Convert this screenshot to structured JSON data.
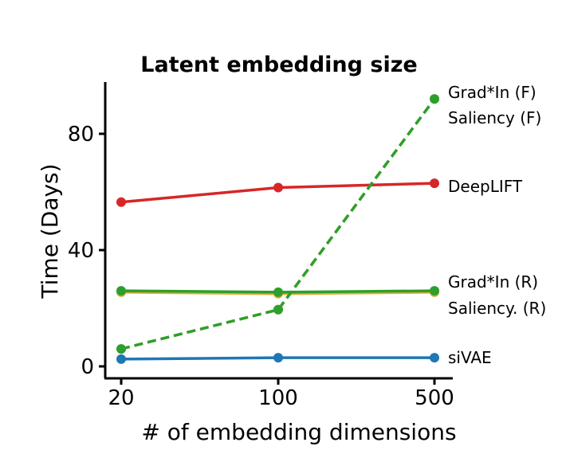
{
  "chart_data": {
    "type": "line",
    "title": "Latent embedding size",
    "xlabel": "# of embedding dimensions",
    "ylabel": "Time (Days)",
    "categories": [
      "20",
      "100",
      "500"
    ],
    "yticks": [
      "0",
      "40",
      "80"
    ],
    "ylim": [
      0,
      100
    ],
    "grid": false,
    "legend": "labels at line ends (right)",
    "series": [
      {
        "name": "Grad*In (F)",
        "color": "#2ca02c",
        "dashed": true,
        "values": [
          6,
          19.5,
          92
        ]
      },
      {
        "name": "Saliency (F)",
        "color": "#e8a93a",
        "dashed": true,
        "values": [
          6,
          19.5,
          92
        ]
      },
      {
        "name": "DeepLIFT",
        "color": "#d62728",
        "dashed": false,
        "values": [
          56.5,
          61.5,
          63
        ]
      },
      {
        "name": "Grad*In (R)",
        "color": "#2ca02c",
        "dashed": false,
        "values": [
          26,
          25.5,
          26
        ]
      },
      {
        "name": "Saliency. (R)",
        "color": "#e8a93a",
        "dashed": false,
        "values": [
          25.5,
          25,
          25.5
        ]
      },
      {
        "name": "siVAE",
        "color": "#1f77b4",
        "dashed": false,
        "values": [
          2.5,
          3,
          3
        ]
      }
    ],
    "end_labels": [
      {
        "text": "Grad*In (F)"
      },
      {
        "text": "Saliency (F)"
      },
      {
        "text": "DeepLIFT"
      },
      {
        "text": "Grad*In (R)"
      },
      {
        "text": "Saliency. (R)"
      },
      {
        "text": "siVAE"
      }
    ]
  }
}
